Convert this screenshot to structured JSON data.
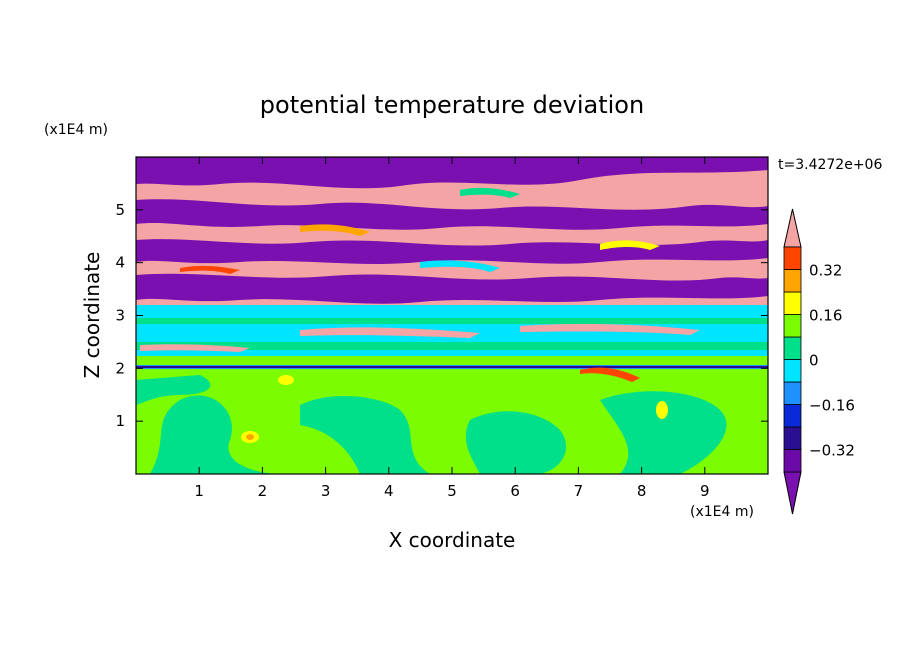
{
  "chart_data": {
    "type": "heatmap",
    "title": "potential temperature deviation",
    "xlabel": "X coordinate",
    "ylabel": "Z coordinate",
    "x_unit": "(x1E4 m)",
    "y_unit": "(x1E4 m)",
    "time_label": "t=3.4272e+06",
    "xlim": [
      0,
      10
    ],
    "ylim": [
      0,
      6
    ],
    "x_ticks": [
      "1",
      "2",
      "3",
      "4",
      "5",
      "6",
      "7",
      "8",
      "9"
    ],
    "y_ticks": [
      "1",
      "2",
      "3",
      "4",
      "5"
    ],
    "colorbar": {
      "levels": [
        -0.4,
        -0.32,
        -0.24,
        -0.16,
        -0.08,
        0,
        0.08,
        0.16,
        0.24,
        0.32,
        0.4
      ],
      "labels": [
        "0.32",
        "0.16",
        "0",
        "-0.16",
        "-0.32"
      ],
      "colors_low_to_high": [
        "#6b0aa6",
        "#2a1090",
        "#0a2ad8",
        "#1e90ff",
        "#00e5ff",
        "#00e08a",
        "#7cfc00",
        "#ffff00",
        "#ffa500",
        "#ff4500",
        "#ff1a1a"
      ],
      "over_color": "#f4a4a4",
      "under_color": "#7a10b0"
    },
    "regions": [
      {
        "z_range": [
          0,
          2.0
        ],
        "dominant": "0 to 0.08",
        "color": "#7cfc00"
      },
      {
        "z_range": [
          2.0,
          3.2
        ],
        "dominant": "-0.16 to 0",
        "color": "#00e5ff"
      },
      {
        "z_range": [
          3.2,
          6.0
        ],
        "dominant": "alternating bands above 0.4 and below -0.4",
        "colors": [
          "#f4a4a4",
          "#7a10b0"
        ]
      }
    ]
  }
}
